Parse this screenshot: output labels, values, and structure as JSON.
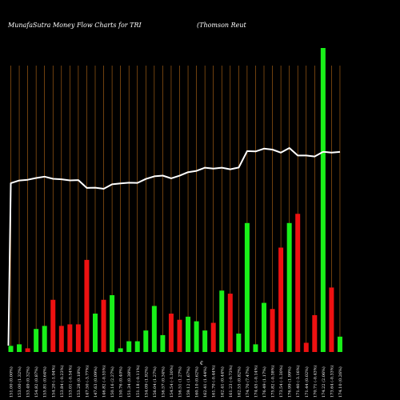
{
  "chart_data": {
    "type": "bar",
    "title": "MunafaSutra  Money Flow  Charts for TRI",
    "subtitle": "(Thomson  Reut",
    "axis_mark": "€",
    "grid": "vertical",
    "colors": {
      "background": "#000000",
      "grid": "#b86a18",
      "up": "#19f019",
      "down": "#ee1111",
      "price_line": "#ffffff",
      "text": "#ffffff"
    },
    "categories": [
      "151.00 (0.00%)",
      "153.00 (1.32%)",
      "153.49 (0.32%)",
      "154.82 (0.87%)",
      "155.81 (0.64%)",
      "154.20 (-1.04%)",
      "153.84 (-0.23%)",
      "153.01 (-0.54%)",
      "153.28 (0.18%)",
      "147.50 (-3.77%)",
      "147.63 (0.09%)",
      "146.82 (-0.55%)",
      "150.16 (2.27%)",
      "150.76 (0.40%)",
      "151.34 (0.38%)",
      "151.18 (-0.11%)",
      "154.09 (1.92%)",
      "156.04 (1.27%)",
      "156.57 (0.34%)",
      "154.54 (-1.30%)",
      "156.51 (1.27%)",
      "159.12 (1.67%)",
      "160.10 (0.62%)",
      "162.41 (1.44%)",
      "161.70 (-0.44%)",
      "162.41 (0.44%)",
      "161.23 (-0.73%)",
      "162.55 (0.82%)",
      "174.70 (7.47%)",
      "174.45 (-0.14%)",
      "176.49 (1.17%)",
      "175.82 (-0.38%)",
      "173.54 (-1.30%)",
      "176.99 (1.99%)",
      "171.40 (-3.16%)",
      "171.44 (0.02%)",
      "170.71 (-0.43%)",
      "174.22 (2.06%)",
      "173.64 (-0.33%)",
      "174.10 (0.26%)"
    ],
    "price": [
      151.0,
      153.0,
      153.49,
      154.82,
      155.81,
      154.2,
      153.84,
      153.01,
      153.28,
      147.5,
      147.63,
      146.82,
      150.16,
      150.76,
      151.34,
      151.18,
      154.09,
      156.04,
      156.57,
      154.54,
      156.51,
      159.12,
      160.1,
      162.41,
      161.7,
      162.41,
      161.23,
      162.55,
      174.7,
      174.45,
      176.49,
      175.82,
      173.54,
      176.99,
      171.4,
      171.44,
      170.71,
      174.22,
      173.64,
      174.1
    ],
    "flow": [
      2,
      2.5,
      1.2,
      7.5,
      8.5,
      17,
      8.5,
      9,
      9,
      30,
      12.5,
      17,
      18.5,
      1.2,
      3.5,
      3.5,
      7,
      15,
      5.5,
      12.5,
      10.5,
      11.5,
      10,
      7,
      9.5,
      20,
      19,
      6,
      42,
      2.5,
      16,
      14,
      34,
      42,
      45,
      3,
      12,
      99,
      21,
      5
    ],
    "direction": [
      "up",
      "up",
      "down",
      "up",
      "up",
      "down",
      "down",
      "down",
      "down",
      "down",
      "up",
      "down",
      "up",
      "up",
      "up",
      "up",
      "up",
      "up",
      "up",
      "down",
      "down",
      "up",
      "up",
      "up",
      "down",
      "up",
      "down",
      "up",
      "up",
      "up",
      "up",
      "down",
      "down",
      "up",
      "down",
      "down",
      "down",
      "up",
      "down",
      "up"
    ]
  }
}
